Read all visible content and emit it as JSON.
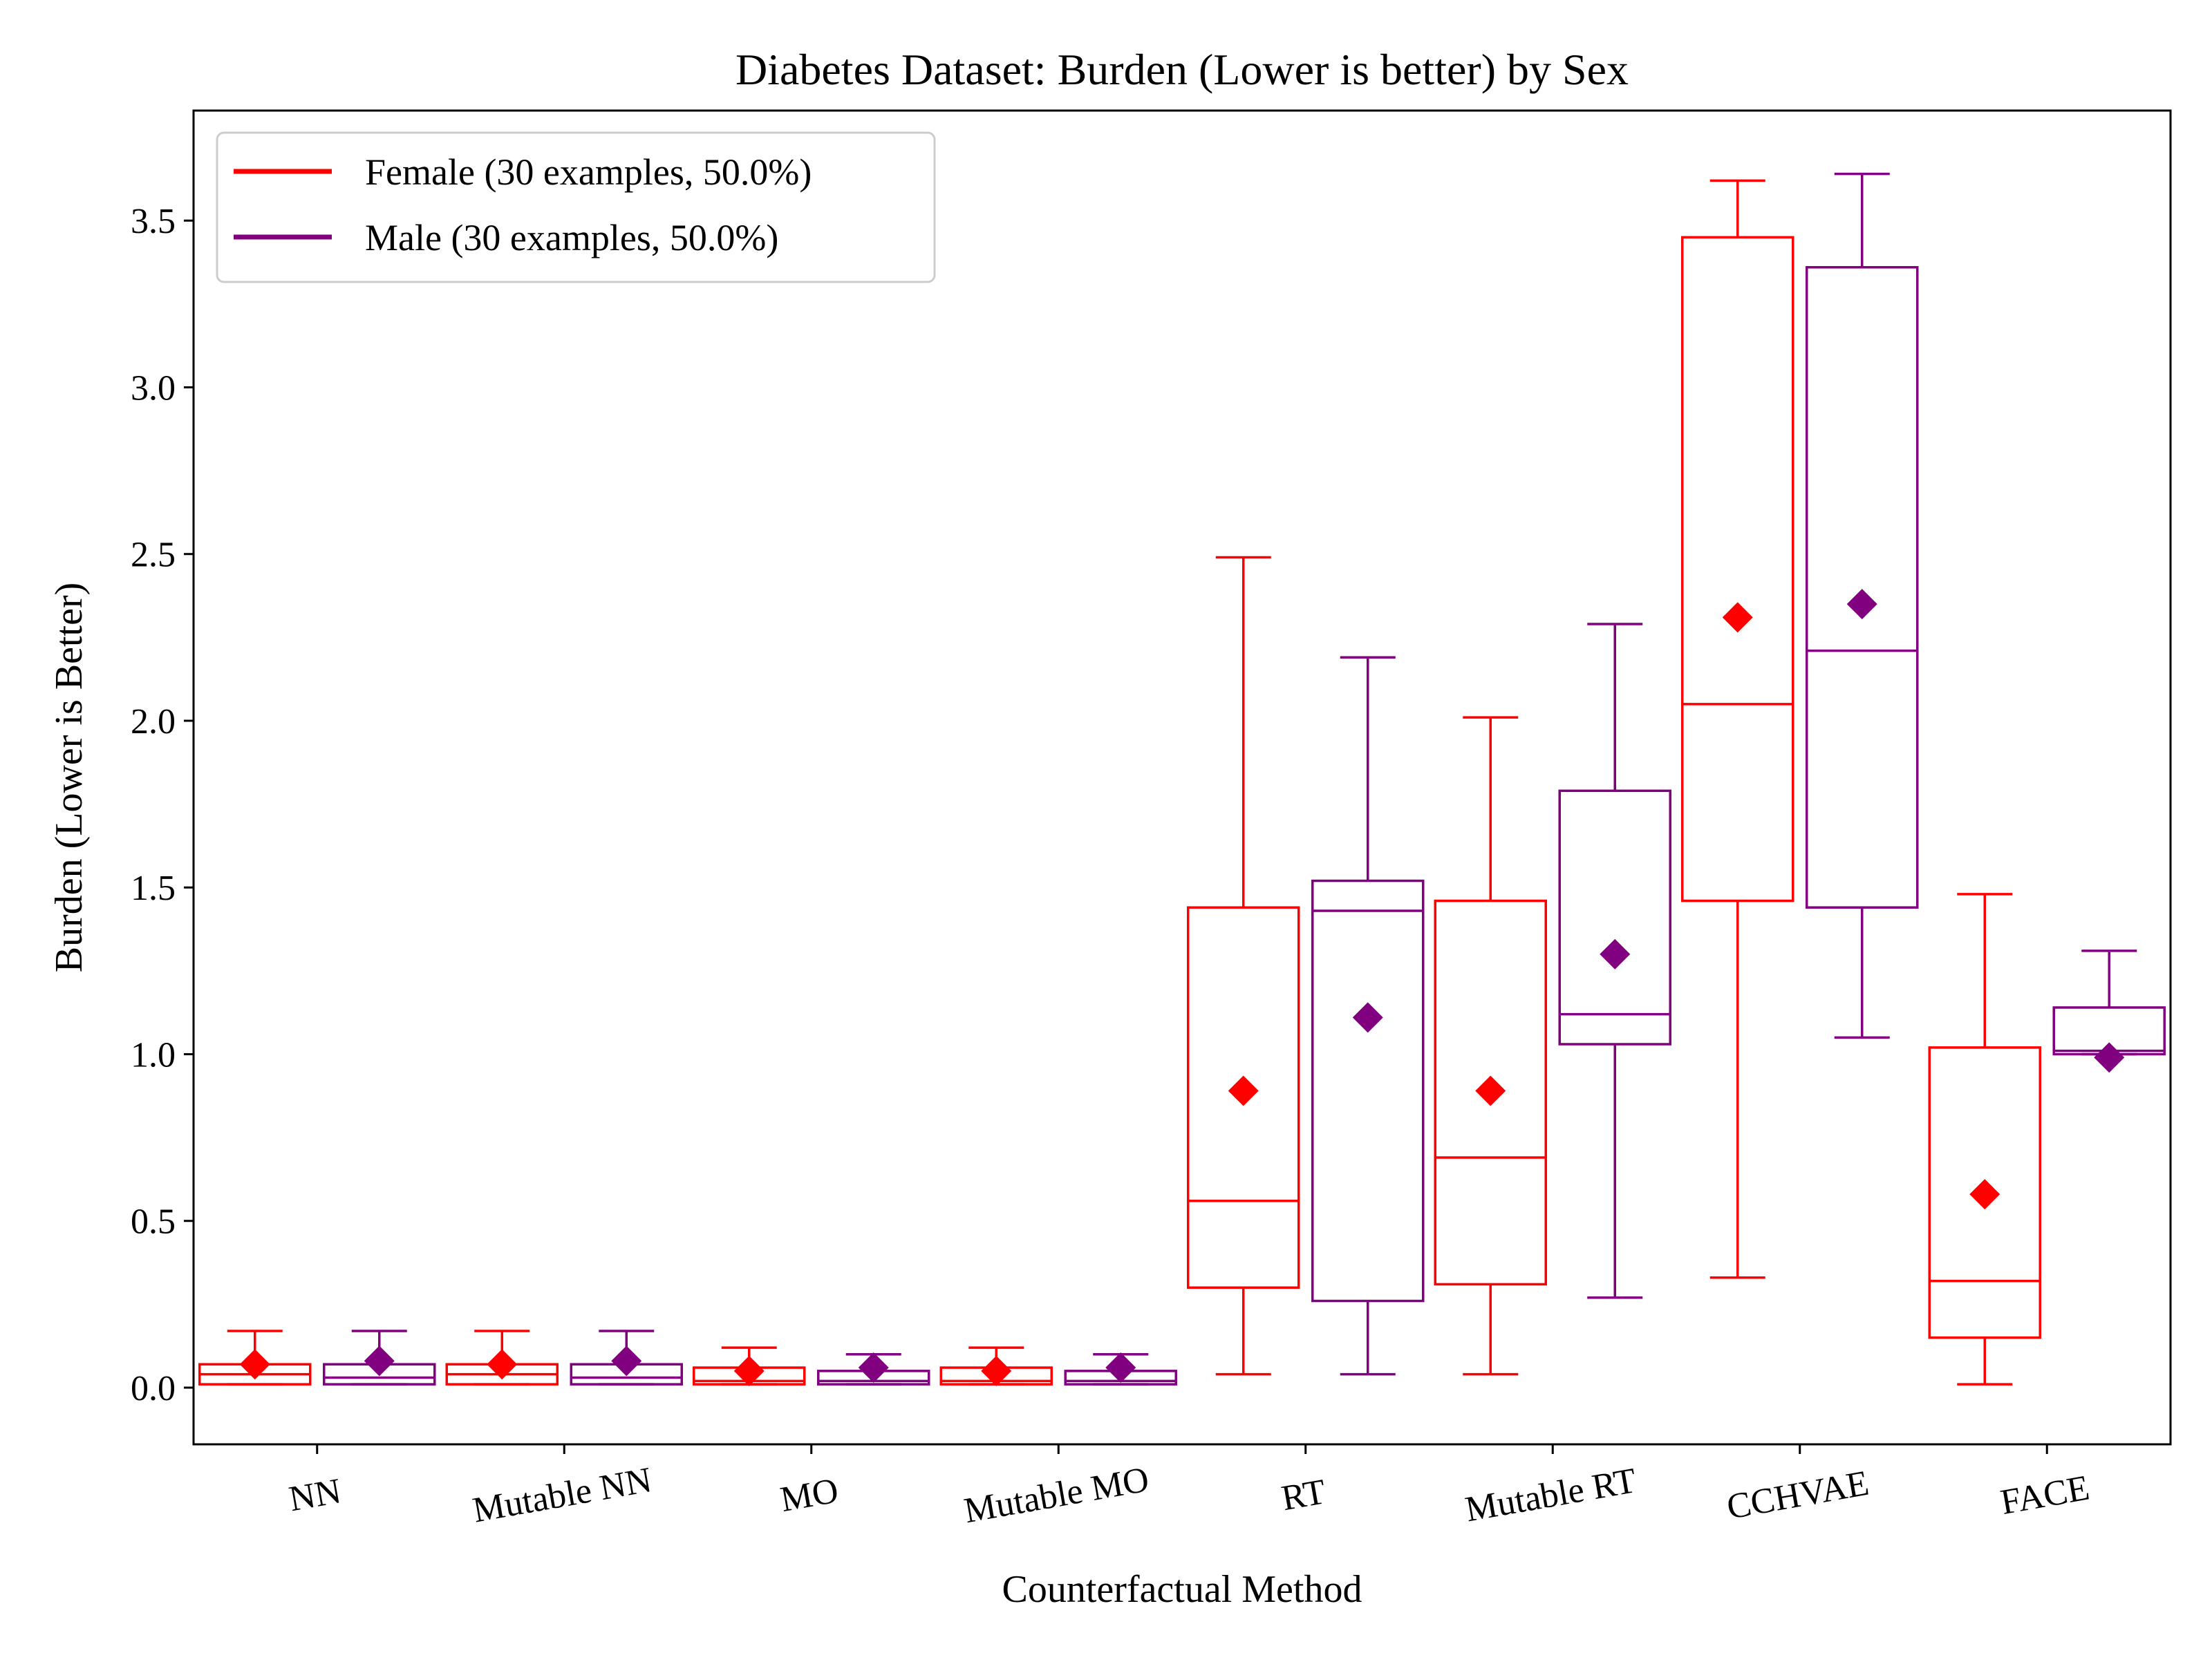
{
  "chart_data": {
    "type": "box",
    "title": "Diabetes Dataset: Burden (Lower is better) by Sex",
    "xlabel": "Counterfactual Method",
    "ylabel": "Burden (Lower is Better)",
    "ylim": [
      -0.17,
      3.83
    ],
    "yticks": [
      "0.0",
      "0.5",
      "1.0",
      "1.5",
      "2.0",
      "2.5",
      "3.0",
      "3.5"
    ],
    "ytick_values": [
      0.0,
      0.5,
      1.0,
      1.5,
      2.0,
      2.5,
      3.0,
      3.5
    ],
    "categories": [
      "NN",
      "Mutable NN",
      "MO",
      "Mutable MO",
      "RT",
      "Mutable RT",
      "CCHVAE",
      "FACE"
    ],
    "legend_position": "top-left",
    "grid": false,
    "mean_marker": "diamond",
    "series": [
      {
        "name": "Female (30 examples, 50.0%)",
        "color": "#ff0000",
        "boxes": [
          {
            "whisker_low": 0.01,
            "q1": 0.01,
            "median": 0.04,
            "q3": 0.07,
            "whisker_high": 0.17,
            "mean": 0.07
          },
          {
            "whisker_low": 0.01,
            "q1": 0.01,
            "median": 0.04,
            "q3": 0.07,
            "whisker_high": 0.17,
            "mean": 0.07
          },
          {
            "whisker_low": 0.01,
            "q1": 0.01,
            "median": 0.02,
            "q3": 0.06,
            "whisker_high": 0.12,
            "mean": 0.05
          },
          {
            "whisker_low": 0.01,
            "q1": 0.01,
            "median": 0.02,
            "q3": 0.06,
            "whisker_high": 0.12,
            "mean": 0.05
          },
          {
            "whisker_low": 0.04,
            "q1": 0.3,
            "median": 0.56,
            "q3": 1.44,
            "whisker_high": 2.49,
            "mean": 0.89
          },
          {
            "whisker_low": 0.04,
            "q1": 0.31,
            "median": 0.69,
            "q3": 1.46,
            "whisker_high": 2.01,
            "mean": 0.89
          },
          {
            "whisker_low": 0.33,
            "q1": 1.46,
            "median": 2.05,
            "q3": 3.45,
            "whisker_high": 3.62,
            "mean": 2.31
          },
          {
            "whisker_low": 0.01,
            "q1": 0.15,
            "median": 0.32,
            "q3": 1.02,
            "whisker_high": 1.48,
            "mean": 0.58
          }
        ]
      },
      {
        "name": "Male (30 examples, 50.0%)",
        "color": "#800080",
        "boxes": [
          {
            "whisker_low": 0.01,
            "q1": 0.01,
            "median": 0.03,
            "q3": 0.07,
            "whisker_high": 0.17,
            "mean": 0.08
          },
          {
            "whisker_low": 0.01,
            "q1": 0.01,
            "median": 0.03,
            "q3": 0.07,
            "whisker_high": 0.17,
            "mean": 0.08
          },
          {
            "whisker_low": 0.01,
            "q1": 0.01,
            "median": 0.02,
            "q3": 0.05,
            "whisker_high": 0.1,
            "mean": 0.06
          },
          {
            "whisker_low": 0.01,
            "q1": 0.01,
            "median": 0.02,
            "q3": 0.05,
            "whisker_high": 0.1,
            "mean": 0.06
          },
          {
            "whisker_low": 0.04,
            "q1": 0.26,
            "median": 1.43,
            "q3": 1.52,
            "whisker_high": 2.19,
            "mean": 1.11
          },
          {
            "whisker_low": 0.27,
            "q1": 1.03,
            "median": 1.12,
            "q3": 1.79,
            "whisker_high": 2.29,
            "mean": 1.3
          },
          {
            "whisker_low": 1.05,
            "q1": 1.44,
            "median": 2.21,
            "q3": 3.36,
            "whisker_high": 3.64,
            "mean": 2.35
          },
          {
            "whisker_low": 1.0,
            "q1": 1.0,
            "median": 1.01,
            "q3": 1.14,
            "whisker_high": 1.31,
            "mean": 0.99
          }
        ]
      }
    ]
  }
}
